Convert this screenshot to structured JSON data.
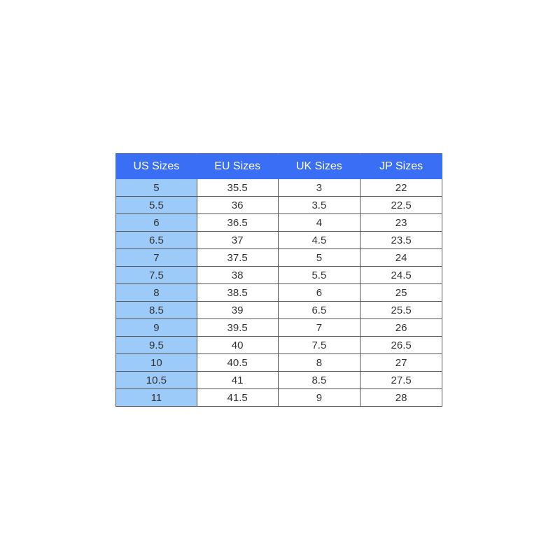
{
  "headers": [
    "US Sizes",
    "EU Sizes",
    "UK Sizes",
    "JP Sizes"
  ],
  "rows": [
    [
      "5",
      "35.5",
      "3",
      "22"
    ],
    [
      "5.5",
      "36",
      "3.5",
      "22.5"
    ],
    [
      "6",
      "36.5",
      "4",
      "23"
    ],
    [
      "6.5",
      "37",
      "4.5",
      "23.5"
    ],
    [
      "7",
      "37.5",
      "5",
      "24"
    ],
    [
      "7.5",
      "38",
      "5.5",
      "24.5"
    ],
    [
      "8",
      "38.5",
      "6",
      "25"
    ],
    [
      "8.5",
      "39",
      "6.5",
      "25.5"
    ],
    [
      "9",
      "39.5",
      "7",
      "26"
    ],
    [
      "9.5",
      "40",
      "7.5",
      "26.5"
    ],
    [
      "10",
      "40.5",
      "8",
      "27"
    ],
    [
      "10.5",
      "41",
      "8.5",
      "27.5"
    ],
    [
      "11",
      "41.5",
      "9",
      "28"
    ]
  ],
  "colors": {
    "header_bg": "#3a6ef5",
    "first_column_bg": "#9ccbfa"
  }
}
